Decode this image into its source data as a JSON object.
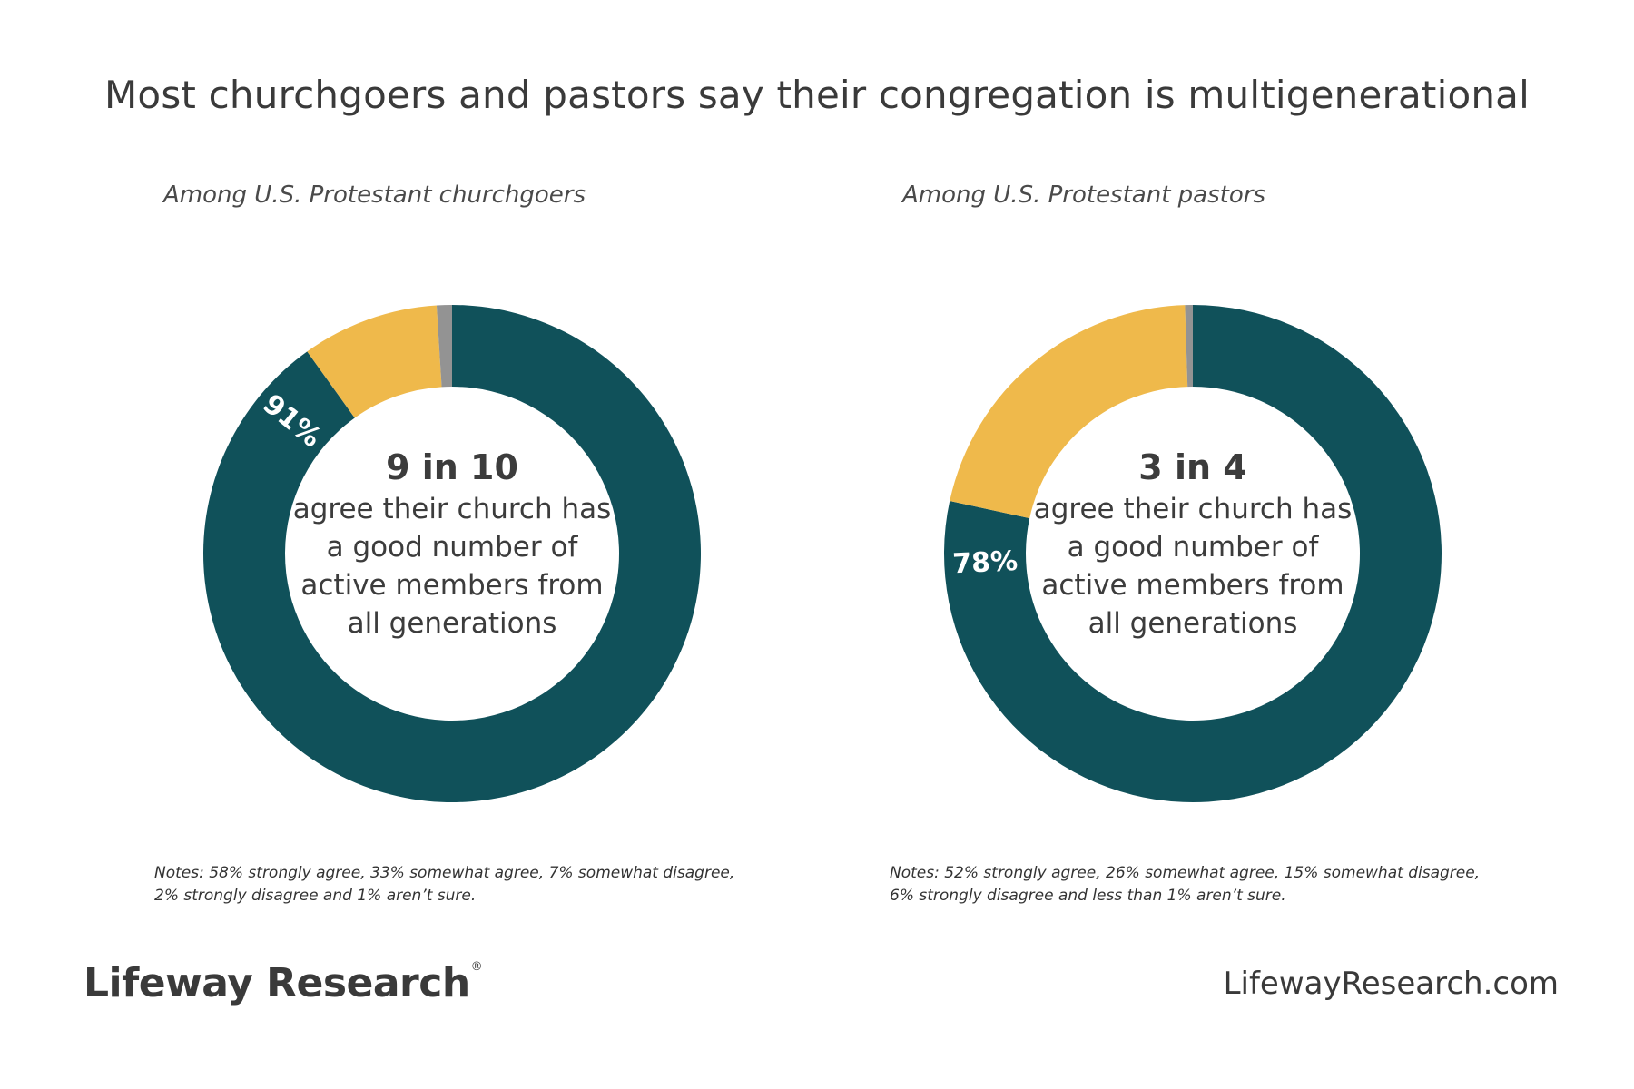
{
  "title": "Most churchgoers and pastors say their congregation is multigenerational",
  "colors": {
    "agree": "#10515a",
    "disagree": "#efb94b",
    "not_sure": "#939393"
  },
  "chart_data": [
    {
      "type": "pie",
      "subtitle": "Among U.S. Protestant churchgoers",
      "categories": [
        "Agree",
        "Disagree",
        "Not sure"
      ],
      "values": [
        91,
        9,
        1
      ],
      "data_label": "91%",
      "center_big": "9 in 10",
      "center_text": [
        "agree their church has",
        "a good number of",
        "active members from",
        "all generations"
      ],
      "notes": [
        "Notes: 58% strongly agree, 33% somewhat agree, 7% somewhat disagree,",
        "2% strongly disagree and 1% aren’t sure."
      ]
    },
    {
      "type": "pie",
      "subtitle": "Among U.S. Protestant pastors",
      "categories": [
        "Agree",
        "Disagree",
        "Not sure"
      ],
      "values": [
        78,
        21,
        0.5
      ],
      "data_label": "78%",
      "center_big": "3 in 4",
      "center_text": [
        "agree their church has",
        "a good number of",
        "active members from",
        "all generations"
      ],
      "notes": [
        "Notes: 52% strongly agree, 26% somewhat agree, 15% somewhat disagree,",
        "6% strongly disagree and less than 1% aren’t sure."
      ]
    }
  ],
  "footer": {
    "logo": "Lifeway Research",
    "logo_reg": "®",
    "url": "LifewayResearch.com"
  }
}
